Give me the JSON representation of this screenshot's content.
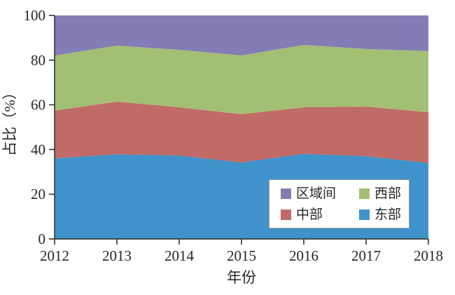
{
  "figure": {
    "background": "#ffffff",
    "text_color": "#262626",
    "axis_color": "#3d3d3d"
  },
  "axes": {
    "y_title": "占比（%）",
    "x_title": "年份",
    "y_ticks": [
      0,
      20,
      40,
      60,
      80,
      100
    ],
    "y_tick_labels": [
      "0",
      "20",
      "40",
      "60",
      "80",
      "100"
    ],
    "x_tick_labels": [
      "2012",
      "2013",
      "2014",
      "2015",
      "2016",
      "2017",
      "2018"
    ]
  },
  "chart_data": {
    "type": "area",
    "stacked": true,
    "title": "",
    "xlabel": "年份",
    "ylabel": "占比（%）",
    "x": [
      2012,
      2013,
      2014,
      2015,
      2016,
      2017,
      2018
    ],
    "ylim": [
      0,
      100
    ],
    "grid": false,
    "series": [
      {
        "name": "东部",
        "color": "#3f92ca",
        "values": [
          36.0,
          37.9,
          37.3,
          34.2,
          38.1,
          37.0,
          34.0
        ]
      },
      {
        "name": "中部",
        "color": "#c06b67",
        "values": [
          21.4,
          23.5,
          21.6,
          21.6,
          20.8,
          22.2,
          22.7
        ]
      },
      {
        "name": "西部",
        "color": "#a3bf73",
        "values": [
          24.6,
          25.1,
          25.7,
          26.3,
          27.9,
          25.8,
          27.3
        ]
      },
      {
        "name": "区域间",
        "color": "#847cb5",
        "values": [
          18.0,
          13.5,
          15.4,
          17.9,
          13.2,
          15.0,
          16.0
        ]
      }
    ],
    "legend": {
      "position": "inside-bottom-right",
      "entries": [
        {
          "label": "区域间",
          "color": "#847cb5"
        },
        {
          "label": "西部",
          "color": "#a3bf73"
        },
        {
          "label": "中部",
          "color": "#c06b67"
        },
        {
          "label": "东部",
          "color": "#3f92ca"
        }
      ]
    }
  }
}
